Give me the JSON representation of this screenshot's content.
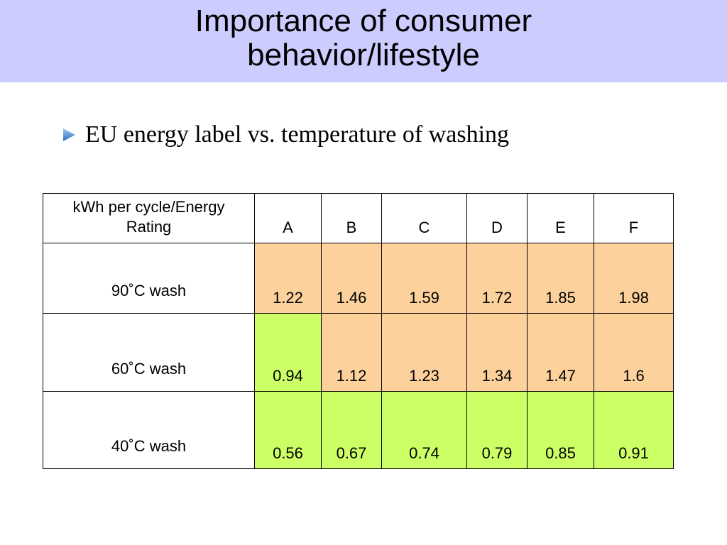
{
  "title": {
    "line1": "Importance of consumer",
    "line2": "behavior/lifestyle"
  },
  "bullet": {
    "icon": "triangle-bullet-icon",
    "text": "EU energy label vs. temperature of washing"
  },
  "colors": {
    "title_band": "#ccccff",
    "orange_cell": "#fcd19c",
    "green_cell": "#ccff66",
    "bullet": "#3a7fd0"
  },
  "table": {
    "corner_header_line1": "kWh per cycle/Energy",
    "corner_header_line2": "Rating",
    "ratings": [
      "A",
      "B",
      "C",
      "D",
      "E",
      "F"
    ],
    "rows": [
      {
        "label": "90˚C wash",
        "values": [
          "1.22",
          "1.46",
          "1.59",
          "1.72",
          "1.85",
          "1.98"
        ],
        "colors": [
          "orange",
          "orange",
          "orange",
          "orange",
          "orange",
          "orange"
        ]
      },
      {
        "label": "60˚C wash",
        "values": [
          "0.94",
          "1.12",
          "1.23",
          "1.34",
          "1.47",
          "1.6"
        ],
        "colors": [
          "green",
          "orange",
          "orange",
          "orange",
          "orange",
          "orange"
        ]
      },
      {
        "label": "40˚C wash",
        "values": [
          "0.56",
          "0.67",
          "0.74",
          "0.79",
          "0.85",
          "0.91"
        ],
        "colors": [
          "green",
          "green",
          "green",
          "green",
          "green",
          "green"
        ]
      }
    ]
  }
}
